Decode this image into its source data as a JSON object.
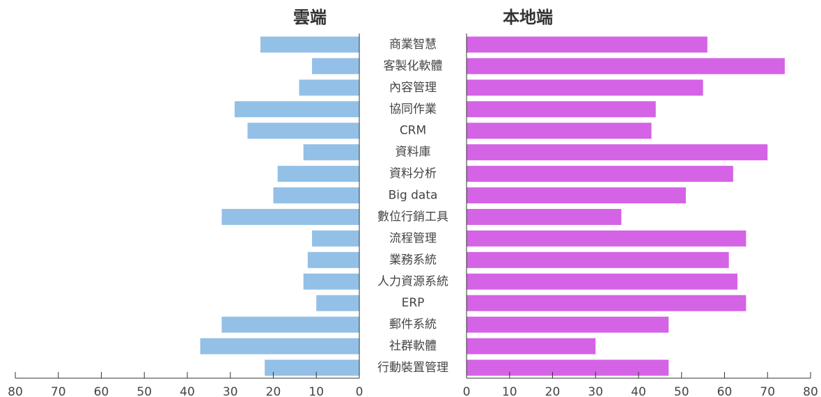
{
  "chart_data": {
    "type": "butterfly",
    "categories": [
      "商業智慧",
      "客製化軟體",
      "內容管理",
      "協同作業",
      "CRM",
      "資料庫",
      "資料分析",
      "Big data",
      "數位行銷工具",
      "流程管理",
      "業務系統",
      "人力資源系統",
      "ERP",
      "郵件系統",
      "社群軟體",
      "行動裝置管理"
    ],
    "series": [
      {
        "name": "雲端",
        "color": "#93c0e6",
        "values": [
          23,
          11,
          14,
          29,
          26,
          13,
          19,
          20,
          32,
          11,
          12,
          13,
          10,
          32,
          37,
          22
        ]
      },
      {
        "name": "本地端",
        "color": "#d563e6",
        "values": [
          56,
          74,
          55,
          44,
          43,
          70,
          62,
          51,
          36,
          65,
          61,
          63,
          65,
          47,
          30,
          47
        ]
      }
    ],
    "xlim": [
      0,
      80
    ],
    "xticks": [
      0,
      10,
      20,
      30,
      40,
      50,
      60,
      70,
      80
    ]
  }
}
